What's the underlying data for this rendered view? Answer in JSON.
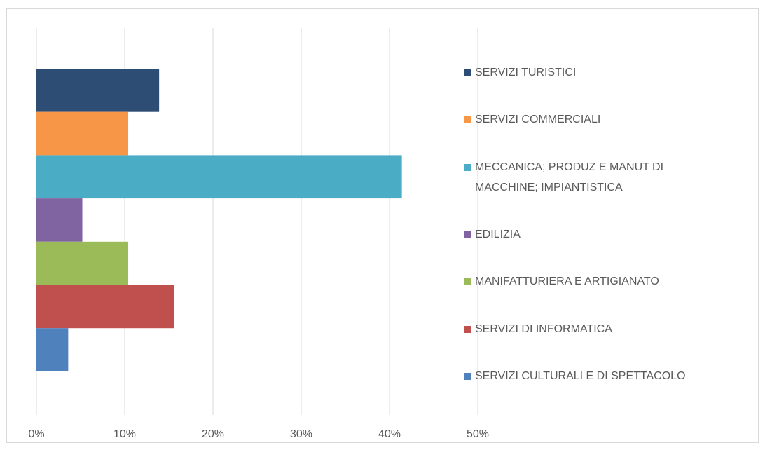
{
  "chart_data": {
    "type": "bar",
    "orientation": "horizontal",
    "series": [
      {
        "name": "SERVIZI TURISTICI",
        "color": "#2e4d74",
        "values": [
          13.9
        ]
      },
      {
        "name": "SERVIZI COMMERCIALI",
        "color": "#f79646",
        "values": [
          10.4
        ]
      },
      {
        "name": "MECCANICA; PRODUZ E MANUT DI MACCHINE; IMPIANTISTICA",
        "color": "#4bacc6",
        "values": [
          41.4
        ]
      },
      {
        "name": "EDILIZIA",
        "color": "#8064a2",
        "values": [
          5.2
        ]
      },
      {
        "name": "MANIFATTURIERA E ARTIGIANATO",
        "color": "#9bbb59",
        "values": [
          10.4
        ]
      },
      {
        "name": "SERVIZI DI INFORMATICA",
        "color": "#c0504d",
        "values": [
          15.6
        ]
      },
      {
        "name": "SERVIZI CULTURALI E DI SPETTACOLO",
        "color": "#4f81bd",
        "values": [
          3.6
        ]
      }
    ],
    "xlim": [
      0,
      50
    ],
    "xticks": [
      {
        "value": 0,
        "label": "0%"
      },
      {
        "value": 10,
        "label": "10%"
      },
      {
        "value": 20,
        "label": "20%"
      },
      {
        "value": 30,
        "label": "30%"
      },
      {
        "value": 40,
        "label": "40%"
      },
      {
        "value": 50,
        "label": "50%"
      }
    ],
    "grid": true,
    "legend": "right"
  }
}
